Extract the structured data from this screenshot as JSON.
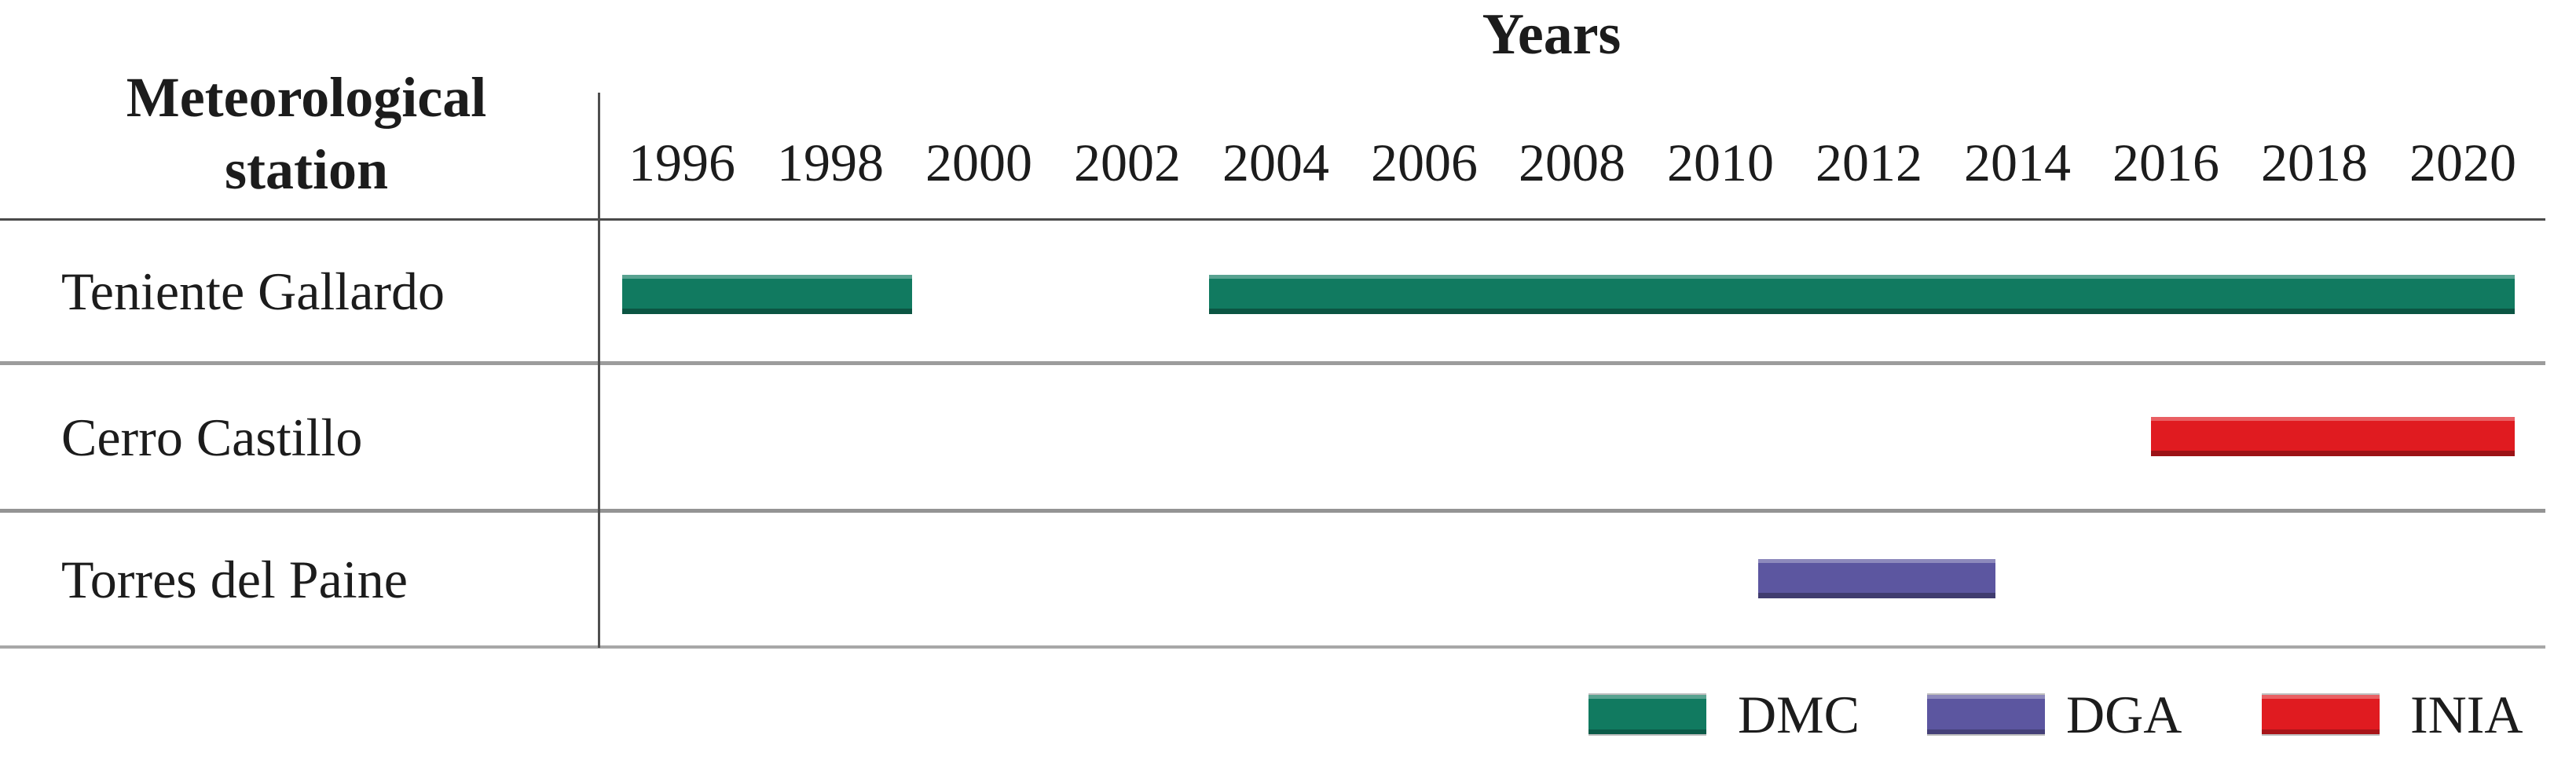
{
  "chart_data": {
    "type": "gantt",
    "title": "Years",
    "y_header": "Meteorological station",
    "x_ticks": [
      1996,
      1998,
      2000,
      2002,
      2004,
      2006,
      2008,
      2010,
      2012,
      2014,
      2016,
      2018,
      2020
    ],
    "x_range": [
      1994.9,
      2021.1
    ],
    "grid": "row-dividers-only",
    "stations": [
      {
        "name": "Teniente Gallardo",
        "intervals": [
          {
            "series": "DMC",
            "start": 1995.2,
            "end": 1999.1
          },
          {
            "series": "DMC",
            "start": 2003.1,
            "end": 2020.7
          }
        ]
      },
      {
        "name": "Cerro Castillo",
        "intervals": [
          {
            "series": "INIA",
            "start": 2015.8,
            "end": 2020.7
          }
        ]
      },
      {
        "name": "Torres del Paine",
        "intervals": [
          {
            "series": "DGA",
            "start": 2010.5,
            "end": 2013.7
          }
        ]
      }
    ],
    "legend": [
      {
        "label": "DMC",
        "color": "#117a60"
      },
      {
        "label": "DGA",
        "color": "#5c56a0"
      },
      {
        "label": "INIA",
        "color": "#e01b20"
      }
    ],
    "legend_position": "bottom-right",
    "colors": {
      "axis_line": "#4f4f4f",
      "row_divider": "#9c9c9c",
      "text": "#1c1c1c",
      "background": "#ffffff"
    }
  }
}
